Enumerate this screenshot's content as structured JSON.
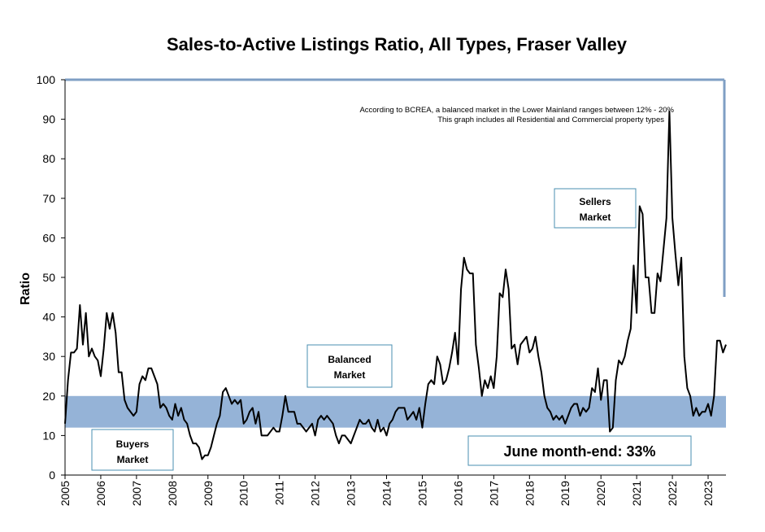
{
  "chart_data": {
    "type": "line",
    "title": "Sales-to-Active Listings Ratio, All Types, Fraser Valley",
    "ylabel": "Ratio",
    "xlabel": "",
    "ylim": [
      0,
      100
    ],
    "y_ticks": [
      "0",
      "10",
      "20",
      "30",
      "40",
      "50",
      "60",
      "70",
      "80",
      "90",
      "100"
    ],
    "x_ticks": [
      "2005",
      "2006",
      "2007",
      "2008",
      "2009",
      "2010",
      "2011",
      "2012",
      "2013",
      "2014",
      "2015",
      "2016",
      "2017",
      "2018",
      "2019",
      "2020",
      "2021",
      "2022",
      "2023"
    ],
    "balanced_band": [
      12,
      20
    ],
    "band_color": "#95b3d7",
    "line_color": "#000000",
    "notes": [
      "According to BCREA, a balanced market in the Lower Mainland ranges between 12% - 20%",
      "This graph includes all Residential and Commercial property types"
    ],
    "annotations": {
      "sellers": [
        "Sellers",
        "Market"
      ],
      "balanced": [
        "Balanced",
        "Market"
      ],
      "buyers": [
        "Buyers",
        "Market"
      ],
      "callout": "June month-end: 33%"
    },
    "x_start": "2005-01",
    "series": [
      {
        "values": [
          13,
          24,
          31,
          31,
          32,
          43,
          33,
          41,
          30,
          32,
          30,
          29,
          25,
          32,
          41,
          37,
          41,
          36,
          26,
          26,
          19,
          17,
          16,
          15,
          16,
          23,
          25,
          24,
          27,
          27,
          25,
          23,
          17,
          18,
          17,
          15,
          14,
          18,
          15,
          17,
          14,
          13,
          10,
          8,
          8,
          7,
          4,
          5,
          5,
          7,
          10,
          13,
          15,
          21,
          22,
          20,
          18,
          19,
          18,
          19,
          13,
          14,
          16,
          17,
          13,
          16,
          10,
          10,
          10,
          11,
          12,
          11,
          11,
          15,
          20,
          16,
          16,
          16,
          13,
          13,
          12,
          11,
          12,
          13,
          10,
          14,
          15,
          14,
          15,
          14,
          13,
          10,
          8,
          10,
          10,
          9,
          8,
          10,
          12,
          14,
          13,
          13,
          14,
          12,
          11,
          14,
          11,
          12,
          10,
          13,
          14,
          16,
          17,
          17,
          17,
          14,
          15,
          16,
          14,
          17,
          12,
          18,
          23,
          24,
          23,
          30,
          28,
          23,
          24,
          27,
          31,
          36,
          28,
          47,
          55,
          52,
          51,
          51,
          33,
          27,
          20,
          24,
          22,
          25,
          22,
          30,
          46,
          45,
          52,
          47,
          32,
          33,
          28,
          33,
          34,
          35,
          31,
          32,
          35,
          30,
          26,
          20,
          17,
          16,
          14,
          15,
          14,
          15,
          13,
          15,
          17,
          18,
          18,
          15,
          17,
          16,
          17,
          22,
          21,
          27,
          19,
          24,
          24,
          11,
          12,
          24,
          29,
          28,
          30,
          34,
          37,
          53,
          41,
          68,
          66,
          50,
          50,
          41,
          41,
          51,
          49,
          57,
          65,
          92,
          65,
          56,
          48,
          55,
          30,
          22,
          20,
          15,
          17,
          15,
          16,
          16,
          18,
          15,
          20,
          34,
          34,
          31,
          33
        ]
      }
    ]
  }
}
